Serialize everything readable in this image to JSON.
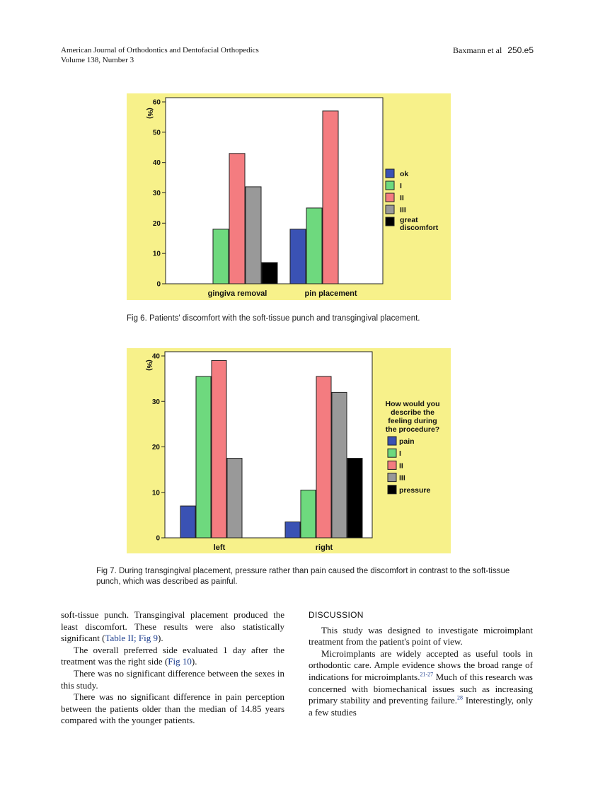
{
  "header": {
    "journal": "American Journal of Orthodontics and Dentofacial Orthopedics",
    "volume": "Volume 138, Number 3",
    "authors": "Baxmann et al",
    "page": "250.e5"
  },
  "figures": [
    {
      "caption": "Fig 6. Patients' discomfort with the soft-tissue punch and transgingival placement."
    },
    {
      "caption": "Fig 7. During transgingival placement, pressure rather than pain caused the discomfort in contrast to the soft-tissue punch, which was described as painful."
    }
  ],
  "chart_data": [
    {
      "type": "bar",
      "title": "",
      "ylabel": "(%)",
      "xlabel": "",
      "ylim": [
        0,
        60
      ],
      "yticks": [
        0,
        10,
        20,
        30,
        40,
        50,
        60
      ],
      "categories": [
        "gingiva removal",
        "pin placement"
      ],
      "legend_title": "",
      "legend_position": "right",
      "series": [
        {
          "name": "ok",
          "color": "#3a52b4",
          "values": [
            0,
            18
          ]
        },
        {
          "name": "I",
          "color": "#6ed97e",
          "values": [
            18,
            25
          ]
        },
        {
          "name": "II",
          "color": "#f47c80",
          "values": [
            43,
            57
          ]
        },
        {
          "name": "III",
          "color": "#999999",
          "values": [
            32,
            0
          ]
        },
        {
          "name": "great discomfort",
          "color": "#000000",
          "values": [
            7,
            0
          ]
        }
      ]
    },
    {
      "type": "bar",
      "title": "",
      "ylabel": "(%)",
      "xlabel": "",
      "ylim": [
        0,
        40
      ],
      "yticks": [
        0,
        10,
        20,
        30,
        40
      ],
      "categories": [
        "left",
        "right"
      ],
      "legend_title": "How would you describe the feeling during the procedure?",
      "legend_position": "right",
      "series": [
        {
          "name": "pain",
          "color": "#3a52b4",
          "values": [
            7,
            3.5
          ]
        },
        {
          "name": "I",
          "color": "#6ed97e",
          "values": [
            35.5,
            10.5
          ]
        },
        {
          "name": "II",
          "color": "#f47c80",
          "values": [
            39,
            35.5
          ]
        },
        {
          "name": "III",
          "color": "#999999",
          "values": [
            17.5,
            32
          ]
        },
        {
          "name": "pressure",
          "color": "#000000",
          "values": [
            0,
            17.5
          ]
        }
      ]
    }
  ],
  "body": {
    "left": {
      "p1": "soft-tissue punch. Transgingival placement produced the least discomfort. These results were also statistically significant (",
      "p1_link": "Table II; Fig 9",
      "p1_end": ").",
      "p2": "The overall preferred side evaluated 1 day after the treatment was the right side (",
      "p2_link": "Fig 10",
      "p2_end": ").",
      "p3": "There was no significant difference between the sexes in this study.",
      "p4": "There was no significant difference in pain perception between the patients older than the median of 14.85 years compared with the younger patients."
    },
    "right": {
      "heading": "DISCUSSION",
      "p1": "This study was designed to investigate microimplant treatment from the patient's point of view.",
      "p2": "Microimplants are widely accepted as useful tools in orthodontic care. Ample evidence shows the broad range of indications for microimplants.",
      "p2_sup1": "21-27",
      "p2_mid": " Much of this research was concerned with biomechanical issues such as increasing primary stability and preventing failure.",
      "p2_sup2": "28",
      "p2_end": " Interestingly, only a few studies"
    }
  }
}
